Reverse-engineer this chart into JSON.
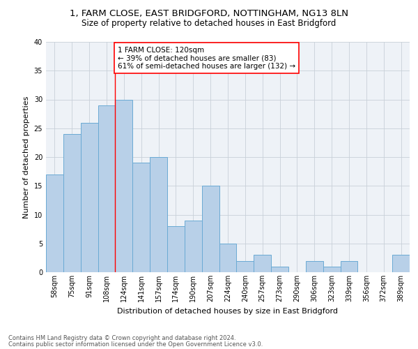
{
  "title1": "1, FARM CLOSE, EAST BRIDGFORD, NOTTINGHAM, NG13 8LN",
  "title2": "Size of property relative to detached houses in East Bridgford",
  "xlabel": "Distribution of detached houses by size in East Bridgford",
  "ylabel": "Number of detached properties",
  "categories": [
    "58sqm",
    "75sqm",
    "91sqm",
    "108sqm",
    "124sqm",
    "141sqm",
    "157sqm",
    "174sqm",
    "190sqm",
    "207sqm",
    "224sqm",
    "240sqm",
    "257sqm",
    "273sqm",
    "290sqm",
    "306sqm",
    "323sqm",
    "339sqm",
    "356sqm",
    "372sqm",
    "389sqm"
  ],
  "values": [
    17,
    24,
    26,
    29,
    30,
    19,
    20,
    8,
    9,
    15,
    5,
    2,
    3,
    1,
    0,
    2,
    1,
    2,
    0,
    0,
    3
  ],
  "bar_color": "#b8d0e8",
  "bar_edge_color": "#6aaad4",
  "red_line_index": 3.5,
  "annotation_text": "1 FARM CLOSE: 120sqm\n← 39% of detached houses are smaller (83)\n61% of semi-detached houses are larger (132) →",
  "annotation_box_color": "white",
  "annotation_box_edge": "red",
  "ylim": [
    0,
    40
  ],
  "yticks": [
    0,
    5,
    10,
    15,
    20,
    25,
    30,
    35,
    40
  ],
  "footer1": "Contains HM Land Registry data © Crown copyright and database right 2024.",
  "footer2": "Contains public sector information licensed under the Open Government Licence v3.0.",
  "bg_color": "#eef2f7",
  "grid_color": "#c8d0d8",
  "title1_fontsize": 9.5,
  "title2_fontsize": 8.5,
  "xlabel_fontsize": 8,
  "ylabel_fontsize": 8,
  "tick_fontsize": 7,
  "annotation_fontsize": 7.5,
  "footer_fontsize": 6
}
